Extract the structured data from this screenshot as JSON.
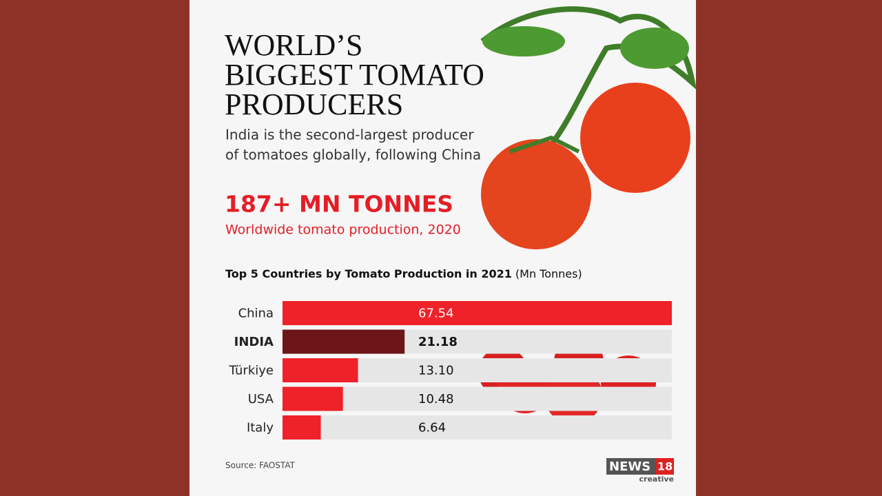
{
  "header": {
    "title_lines": [
      "WORLD’S",
      "BIGGEST TOMATO",
      "PRODUCERS"
    ],
    "subtitle_lines": [
      "India is the second-largest producer",
      "of tomatoes globally, following China"
    ],
    "highlight": "187+ MN TONNES",
    "highlight_caption": "Worldwide tomato production, 2020"
  },
  "chart_data": {
    "type": "bar",
    "orientation": "horizontal",
    "title": "Top 5 Countries by Tomato Production in 2021",
    "unit_label": "(Mn Tonnes)",
    "categories": [
      "China",
      "INDIA",
      "Türkiye",
      "USA",
      "Italy"
    ],
    "values": [
      67.54,
      21.18,
      13.1,
      10.48,
      6.64
    ],
    "value_labels": [
      "67.54",
      "21.18",
      "13.10",
      "10.48",
      "6.64"
    ],
    "colors": [
      "#ef2129",
      "#6d1517",
      "#ef2129",
      "#ef2129",
      "#ef2129"
    ]
  },
  "footer": {
    "source": "Source: FAOSTAT",
    "logo_word": "NEWS",
    "logo_number": "18",
    "logo_sub": "creative"
  }
}
